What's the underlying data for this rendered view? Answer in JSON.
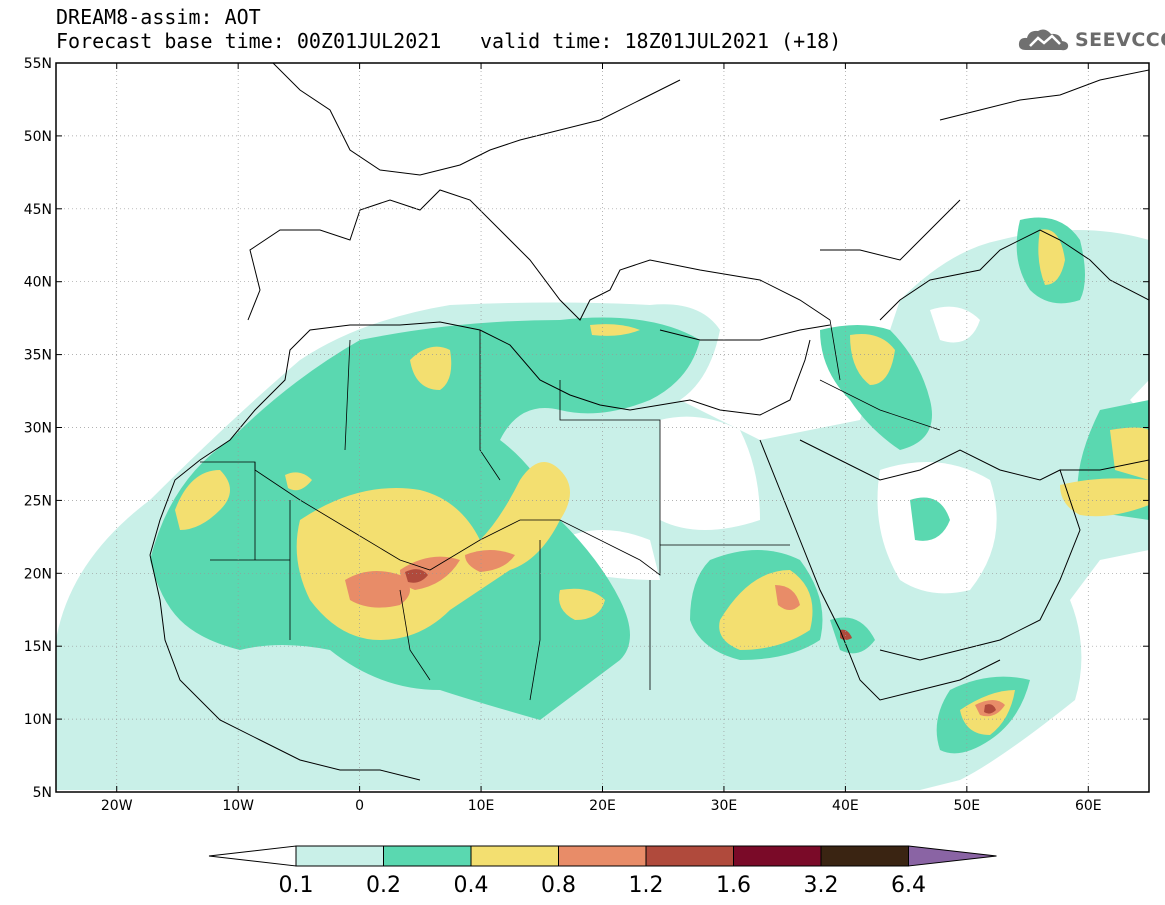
{
  "header": {
    "line1": "DREAM8-assim: AOT",
    "line2": "Forecast base time: 00Z01JUL2021",
    "valid": "valid time: 18Z01JUL2021 (+18)"
  },
  "logo": {
    "text": "SEEVCCC",
    "icon": "cloud-icon"
  },
  "map": {
    "lon_range": [
      -25,
      65
    ],
    "lat_range": [
      5,
      55
    ],
    "lon_ticks": [
      {
        "value": -20,
        "label": "20W"
      },
      {
        "value": -10,
        "label": "10W"
      },
      {
        "value": 0,
        "label": "0"
      },
      {
        "value": 10,
        "label": "10E"
      },
      {
        "value": 20,
        "label": "20E"
      },
      {
        "value": 30,
        "label": "30E"
      },
      {
        "value": 40,
        "label": "40E"
      },
      {
        "value": 50,
        "label": "50E"
      },
      {
        "value": 60,
        "label": "60E"
      }
    ],
    "lat_ticks": [
      {
        "value": 55,
        "label": "55N"
      },
      {
        "value": 50,
        "label": "50N"
      },
      {
        "value": 45,
        "label": "45N"
      },
      {
        "value": 40,
        "label": "40N"
      },
      {
        "value": 35,
        "label": "35N"
      },
      {
        "value": 30,
        "label": "30N"
      },
      {
        "value": 25,
        "label": "25N"
      },
      {
        "value": 20,
        "label": "20N"
      },
      {
        "value": 15,
        "label": "15N"
      },
      {
        "value": 10,
        "label": "10N"
      },
      {
        "value": 5,
        "label": "5N"
      }
    ],
    "grid": true
  },
  "colorbar": {
    "labels": [
      "0.1",
      "0.2",
      "0.4",
      "0.8",
      "1.2",
      "1.6",
      "3.2",
      "6.4"
    ],
    "colors": [
      "#ffffff",
      "#c9f0e8",
      "#5ad8b0",
      "#f3df70",
      "#e88c68",
      "#b04a3c",
      "#7a0a28",
      "#3a2412",
      "#8a64a4"
    ]
  },
  "colors": {
    "lvl1": "#c9f0e8",
    "lvl2": "#5ad8b0",
    "lvl3": "#f3df70",
    "lvl4": "#e88c68",
    "lvl5": "#b04a3c",
    "lvl6": "#7a0a28",
    "logo": "#707070"
  }
}
